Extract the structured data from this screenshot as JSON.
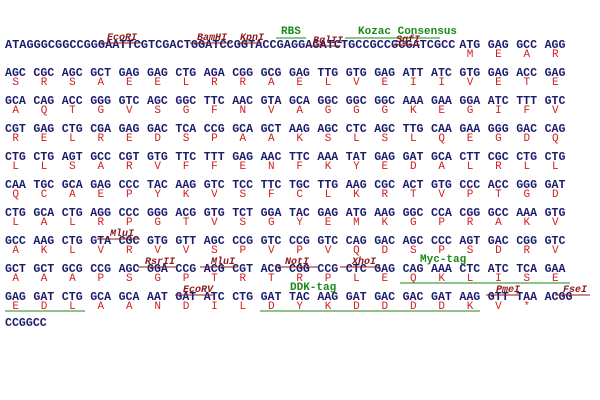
{
  "sequence": {
    "rows": [
      {
        "prefix": "ATAGGGCGGCCGGGAATTCGTCGACTGGATCCGGTACCGAGGAGATCTGCCGCCGCGATCGCC",
        "codons": [
          "ATG",
          "GAG",
          "GCC",
          "AGG"
        ],
        "aa": [
          "M",
          "E",
          "A",
          "R"
        ]
      },
      {
        "codons": [
          "AGC",
          "CGC",
          "AGC",
          "GCT",
          "GAG",
          "GAG",
          "CTG",
          "AGA",
          "CGG",
          "GCG",
          "GAG",
          "TTG",
          "GTG",
          "GAG",
          "ATT",
          "ATC",
          "GTG",
          "GAG",
          "ACC",
          "GAG"
        ],
        "aa": [
          "S",
          "R",
          "S",
          "A",
          "E",
          "E",
          "L",
          "R",
          "R",
          "A",
          "E",
          "L",
          "V",
          "E",
          "I",
          "I",
          "V",
          "E",
          "T",
          "E"
        ]
      },
      {
        "codons": [
          "GCA",
          "CAG",
          "ACC",
          "GGG",
          "GTC",
          "AGC",
          "GGC",
          "TTC",
          "AAC",
          "GTA",
          "GCA",
          "GGC",
          "GGC",
          "GGC",
          "AAA",
          "GAA",
          "GGA",
          "ATC",
          "TTT",
          "GTC"
        ],
        "aa": [
          "A",
          "Q",
          "T",
          "G",
          "V",
          "S",
          "G",
          "F",
          "N",
          "V",
          "A",
          "G",
          "G",
          "G",
          "K",
          "E",
          "G",
          "I",
          "F",
          "V"
        ]
      },
      {
        "codons": [
          "CGT",
          "GAG",
          "CTG",
          "CGA",
          "GAG",
          "GAC",
          "TCA",
          "CCG",
          "GCA",
          "GCT",
          "AAG",
          "AGC",
          "CTC",
          "AGC",
          "TTG",
          "CAA",
          "GAA",
          "GGG",
          "GAC",
          "CAG"
        ],
        "aa": [
          "R",
          "E",
          "L",
          "R",
          "E",
          "D",
          "S",
          "P",
          "A",
          "A",
          "K",
          "S",
          "L",
          "S",
          "L",
          "Q",
          "E",
          "G",
          "D",
          "Q"
        ]
      },
      {
        "codons": [
          "CTG",
          "CTG",
          "AGT",
          "GCC",
          "CGT",
          "GTG",
          "TTC",
          "TTT",
          "GAG",
          "AAC",
          "TTC",
          "AAA",
          "TAT",
          "GAG",
          "GAT",
          "GCA",
          "CTT",
          "CGC",
          "CTG",
          "CTG"
        ],
        "aa": [
          "L",
          "L",
          "S",
          "A",
          "R",
          "V",
          "F",
          "F",
          "E",
          "N",
          "F",
          "K",
          "Y",
          "E",
          "D",
          "A",
          "L",
          "R",
          "L",
          "L"
        ]
      },
      {
        "codons": [
          "CAA",
          "TGC",
          "GCA",
          "GAG",
          "CCC",
          "TAC",
          "AAG",
          "GTC",
          "TCC",
          "TTC",
          "TGC",
          "TTG",
          "AAG",
          "CGC",
          "ACT",
          "GTG",
          "CCC",
          "ACC",
          "GGG",
          "GAT"
        ],
        "aa": [
          "Q",
          "C",
          "A",
          "E",
          "P",
          "Y",
          "K",
          "V",
          "S",
          "F",
          "C",
          "L",
          "K",
          "R",
          "T",
          "V",
          "P",
          "T",
          "G",
          "D"
        ]
      },
      {
        "codons": [
          "CTG",
          "GCA",
          "CTG",
          "AGG",
          "CCC",
          "GGG",
          "ACG",
          "GTG",
          "TCT",
          "GGA",
          "TAC",
          "GAG",
          "ATG",
          "AAG",
          "GGC",
          "CCA",
          "CGG",
          "GCC",
          "AAA",
          "GTG"
        ],
        "aa": [
          "L",
          "A",
          "L",
          "R",
          "P",
          "G",
          "T",
          "V",
          "S",
          "G",
          "Y",
          "E",
          "M",
          "K",
          "G",
          "P",
          "R",
          "A",
          "K",
          "V"
        ]
      },
      {
        "codons": [
          "GCC",
          "AAG",
          "CTG",
          "GTA",
          "CGC",
          "GTG",
          "GTT",
          "AGC",
          "CCG",
          "GTC",
          "CCG",
          "GTC",
          "CAG",
          "GAC",
          "AGC",
          "CCC",
          "AGT",
          "GAC",
          "CGG",
          "GTC"
        ],
        "aa": [
          "A",
          "K",
          "L",
          "V",
          "R",
          "V",
          "V",
          "S",
          "P",
          "V",
          "P",
          "V",
          "Q",
          "D",
          "S",
          "P",
          "S",
          "D",
          "R",
          "V"
        ]
      },
      {
        "codons": [
          "GCT",
          "GCT",
          "GCG",
          "CCG",
          "AGC",
          "GGA",
          "CCG",
          "ACG",
          "CGT",
          "ACG",
          "CGG",
          "CCG",
          "CTC",
          "GAG",
          "CAG",
          "AAA",
          "CTC",
          "ATC",
          "TCA",
          "GAA"
        ],
        "aa": [
          "A",
          "A",
          "A",
          "P",
          "S",
          "G",
          "P",
          "T",
          "R",
          "T",
          "R",
          "P",
          "L",
          "E",
          "Q",
          "K",
          "L",
          "I",
          "S",
          "E"
        ]
      },
      {
        "codons": [
          "GAG",
          "GAT",
          "CTG",
          "GCA",
          "GCA",
          "AAT",
          "GAT",
          "ATC",
          "CTG",
          "GAT",
          "TAC",
          "AAG",
          "GAT",
          "GAC",
          "GAC",
          "GAT",
          "AAG",
          "GTT",
          "TAA",
          "ACGG"
        ],
        "aa": [
          "E",
          "D",
          "L",
          "A",
          "A",
          "N",
          "D",
          "I",
          "L",
          "D",
          "Y",
          "K",
          "D",
          "D",
          "D",
          "D",
          "K",
          "V",
          "*",
          null
        ]
      }
    ],
    "tail": "CCGGCC"
  },
  "features": [
    {
      "label": "EcoRI",
      "color": "#8b1a1a"
    },
    {
      "label": "BamHI",
      "color": "#8b1a1a"
    },
    {
      "label": "KpnI",
      "color": "#8b1a1a"
    },
    {
      "label": "RBS",
      "color": "#1a8a1a"
    },
    {
      "label": "BglII",
      "color": "#8b1a1a"
    },
    {
      "label": "Kozac Consensus",
      "color": "#1a8a1a"
    },
    {
      "label": "SgfI",
      "color": "#8b1a1a"
    },
    {
      "label": "MluI",
      "color": "#8b1a1a"
    },
    {
      "label": "RsrII",
      "color": "#8b1a1a"
    },
    {
      "label": "MluI",
      "color": "#8b1a1a"
    },
    {
      "label": "NotI",
      "color": "#8b1a1a"
    },
    {
      "label": "XhoI",
      "color": "#8b1a1a"
    },
    {
      "label": "Myc-tag",
      "color": "#1a8a1a"
    },
    {
      "label": "EcoRV",
      "color": "#8b1a1a"
    },
    {
      "label": "DDK-tag",
      "color": "#1a8a1a"
    },
    {
      "label": "PmeI",
      "color": "#8b1a1a"
    },
    {
      "label": "FseI",
      "color": "#8b1a1a"
    }
  ]
}
